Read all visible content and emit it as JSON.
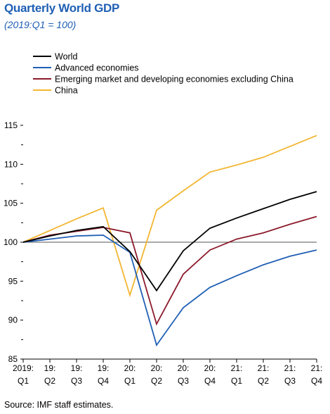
{
  "title": "Quarterly World GDP",
  "subtitle": "(2019:Q1 = 100)",
  "source": "Source: IMF staff estimates.",
  "colors": {
    "world": "#000000",
    "advanced": "#1f5fb4",
    "emerging": "#8b1a2b",
    "china": "#f2b632",
    "reference": "#555555"
  },
  "chart_data": {
    "type": "line",
    "title": "Quarterly World GDP",
    "subtitle": "(2019:Q1 = 100)",
    "xlabel": "",
    "ylabel": "",
    "ylim": [
      85,
      115
    ],
    "yticks": [
      85,
      90,
      95,
      100,
      105,
      110,
      115
    ],
    "reference_line": 100,
    "grid": false,
    "legend_position": "top-left",
    "categories": [
      [
        "2019:",
        "Q1"
      ],
      [
        "19:",
        "Q2"
      ],
      [
        "19:",
        "Q3"
      ],
      [
        "19:",
        "Q4"
      ],
      [
        "20:",
        "Q1"
      ],
      [
        "20:",
        "Q2"
      ],
      [
        "20:",
        "Q3"
      ],
      [
        "20:",
        "Q4"
      ],
      [
        "21:",
        "Q1"
      ],
      [
        "21:",
        "Q2"
      ],
      [
        "21:",
        "Q3"
      ],
      [
        "21:",
        "Q4"
      ]
    ],
    "series": [
      {
        "name": "World",
        "color": "#000000",
        "values": [
          100,
          100.8,
          101.5,
          102.0,
          98.8,
          93.8,
          98.9,
          101.8,
          103.1,
          104.3,
          105.5,
          106.5
        ]
      },
      {
        "name": "Advanced economies",
        "color": "#1f5fb4",
        "values": [
          100,
          100.4,
          100.8,
          100.9,
          98.7,
          86.8,
          91.6,
          94.2,
          95.7,
          97.1,
          98.2,
          99.0
        ]
      },
      {
        "name": "Emerging market and developing economies excluding China",
        "color": "#8b1a2b",
        "values": [
          100,
          100.9,
          101.4,
          101.9,
          101.2,
          89.5,
          95.9,
          99.0,
          100.4,
          101.2,
          102.3,
          103.3
        ]
      },
      {
        "name": "China",
        "color": "#f2b632",
        "values": [
          100,
          101.5,
          103.0,
          104.4,
          93.2,
          104.1,
          106.6,
          109.0,
          109.9,
          110.9,
          112.3,
          113.7
        ]
      }
    ]
  }
}
